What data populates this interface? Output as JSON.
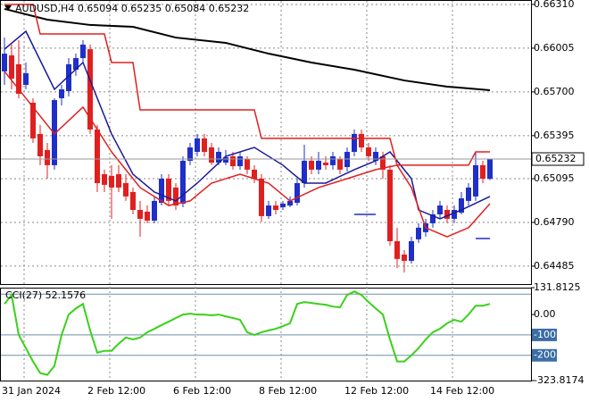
{
  "chart_data": [
    {
      "type": "candlestick",
      "title": "AUDUSD,H4  0.65094 0.65235 0.65084 0.65232",
      "categories": [
        "31 Jan 2024",
        null,
        null,
        null,
        null,
        null,
        null,
        null,
        null,
        null,
        null,
        null,
        "2 Feb 12:00",
        null,
        null,
        null,
        null,
        null,
        null,
        null,
        null,
        null,
        null,
        null,
        "6 Feb 12:00",
        null,
        null,
        null,
        null,
        null,
        null,
        null,
        null,
        null,
        null,
        null,
        "8 Feb 12:00",
        null,
        null,
        null,
        null,
        null,
        null,
        null,
        null,
        null,
        null,
        null,
        "12 Feb 12:00",
        null,
        null,
        null,
        null,
        null,
        null,
        null,
        null,
        null,
        null,
        null,
        "14 Feb 12:00",
        null,
        null,
        null,
        null,
        null,
        null,
        null,
        null
      ],
      "open": [
        0.65843,
        0.65955,
        0.65893,
        0.65749,
        0.65625,
        0.65407,
        0.65295,
        0.65189,
        0.65656,
        0.65706,
        0.65855,
        0.65936,
        0.65998,
        0.65438,
        0.65126,
        0.65114,
        0.65126,
        0.65064,
        0.65002,
        0.64877,
        0.64865,
        0.64802,
        0.64927,
        0.65095,
        0.65033,
        0.64921,
        0.6522,
        0.65282,
        0.65376,
        0.65313,
        0.65207,
        0.65207,
        0.65251,
        0.65182,
        0.65232,
        0.65158,
        0.65095,
        0.64834,
        0.64908,
        0.64896,
        0.64908,
        0.64927,
        0.65064,
        0.6522,
        0.65158,
        0.65207,
        0.65189,
        0.65232,
        0.65176,
        0.65282,
        0.65407,
        0.65313,
        0.6522,
        0.65251,
        0.65158,
        0.64659,
        0.64566,
        0.64522,
        0.64672,
        0.64722,
        0.64784,
        0.64846,
        0.64877,
        0.64815,
        0.64858,
        0.6494,
        0.64971,
        0.65189,
        0.65094
      ],
      "high": [
        0.66079,
        0.6603,
        0.66061,
        0.65905,
        0.65656,
        0.6547,
        0.65344,
        0.65656,
        0.65749,
        0.65936,
        0.65967,
        0.66061,
        0.6603,
        0.6547,
        0.65158,
        0.65189,
        0.65189,
        0.65126,
        0.65033,
        0.6494,
        0.64908,
        0.64971,
        0.65126,
        0.65126,
        0.65064,
        0.65251,
        0.65344,
        0.65407,
        0.65407,
        0.65344,
        0.65313,
        0.65295,
        0.65282,
        0.65282,
        0.65251,
        0.65189,
        0.65126,
        0.6494,
        0.6494,
        0.6494,
        0.64971,
        0.65095,
        0.65332,
        0.65251,
        0.65282,
        0.65251,
        0.65282,
        0.65251,
        0.65313,
        0.65438,
        0.65438,
        0.65344,
        0.65313,
        0.65282,
        0.65189,
        0.64753,
        0.64597,
        0.6469,
        0.64784,
        0.64815,
        0.64877,
        0.6494,
        0.64908,
        0.64908,
        0.65002,
        0.65064,
        0.65282,
        0.6522,
        0.65235
      ],
      "low": [
        0.65749,
        0.65718,
        0.65656,
        0.65718,
        0.65344,
        0.65189,
        0.65095,
        0.65158,
        0.65606,
        0.65668,
        0.65812,
        0.65905,
        0.65407,
        0.65002,
        0.65002,
        0.64815,
        0.65002,
        0.6494,
        0.64846,
        0.6469,
        0.64784,
        0.64784,
        0.64908,
        0.64908,
        0.64877,
        0.64896,
        0.65189,
        0.65251,
        0.65251,
        0.65189,
        0.65189,
        0.65189,
        0.65158,
        0.65158,
        0.65126,
        0.65064,
        0.64796,
        0.64815,
        0.64846,
        0.64877,
        0.64896,
        0.64908,
        0.65033,
        0.65126,
        0.65126,
        0.65158,
        0.65158,
        0.65126,
        0.65145,
        0.65251,
        0.65282,
        0.6522,
        0.65189,
        0.65095,
        0.64628,
        0.64472,
        0.64441,
        0.64503,
        0.64647,
        0.6469,
        0.64753,
        0.64815,
        0.64784,
        0.64784,
        0.64846,
        0.64908,
        0.6494,
        0.65064,
        0.65084
      ],
      "close": [
        0.65967,
        0.65793,
        0.65687,
        0.6583,
        0.65376,
        0.65251,
        0.65189,
        0.65643,
        0.65718,
        0.65893,
        0.65936,
        0.6603,
        0.65438,
        0.65064,
        0.65052,
        0.65033,
        0.65033,
        0.64971,
        0.64877,
        0.64815,
        0.64802,
        0.6494,
        0.65095,
        0.6494,
        0.64908,
        0.6522,
        0.65313,
        0.65376,
        0.65282,
        0.65207,
        0.65282,
        0.65245,
        0.65182,
        0.65251,
        0.65158,
        0.65095,
        0.64834,
        0.64908,
        0.64877,
        0.64921,
        0.6494,
        0.65064,
        0.6522,
        0.65158,
        0.6522,
        0.65189,
        0.65251,
        0.65158,
        0.65282,
        0.65407,
        0.65313,
        0.65251,
        0.65282,
        0.65158,
        0.64659,
        0.64535,
        0.64522,
        0.64659,
        0.64753,
        0.64784,
        0.64846,
        0.64908,
        0.64815,
        0.64877,
        0.64958,
        0.65033,
        0.65189,
        0.65095,
        0.65232
      ],
      "up_color": "#1f2fc8",
      "down_color": "#e0201f",
      "series": [
        {
          "color": "#000000",
          "x": [
            0,
            6,
            12,
            18,
            24,
            31,
            37,
            43,
            49,
            56,
            62,
            68
          ],
          "values": [
            0.66279,
            0.66204,
            0.66167,
            0.66154,
            0.66079,
            0.66042,
            0.65967,
            0.65905,
            0.65855,
            0.6578,
            0.65737,
            0.65712
          ]
        },
        {
          "color": "#1a1a9a",
          "x": [
            0,
            3,
            7,
            11,
            15,
            18,
            21,
            24,
            27,
            31,
            35,
            39,
            42,
            45,
            49,
            52,
            54,
            57,
            58,
            61,
            64,
            68
          ],
          "values": [
            0.65998,
            0.66123,
            0.65718,
            0.65905,
            0.65407,
            0.65126,
            0.65002,
            0.6494,
            0.65064,
            0.65251,
            0.65313,
            0.65189,
            0.65064,
            0.65064,
            0.65158,
            0.6522,
            0.65282,
            0.65095,
            0.64877,
            0.64815,
            0.64877,
            0.64971
          ]
        },
        {
          "color": "#e0201f",
          "x": [
            0,
            4,
            7,
            11,
            15,
            19,
            23,
            26,
            29,
            33,
            37,
            40,
            44,
            48,
            52,
            55,
            57,
            59,
            62,
            65,
            68
          ],
          "values": [
            0.65843,
            0.65594,
            0.65407,
            0.65594,
            0.65282,
            0.65033,
            0.64908,
            0.6494,
            0.65064,
            0.65126,
            0.65064,
            0.6494,
            0.65033,
            0.65095,
            0.65158,
            0.65189,
            0.65033,
            0.64753,
            0.6469,
            0.64753,
            0.64921
          ]
        },
        {
          "color": "#e0201f",
          "x": [
            0,
            4,
            5,
            14,
            15,
            18,
            19,
            35,
            36,
            54,
            55,
            65,
            66,
            68
          ],
          "values": [
            0.6631,
            0.6631,
            0.66104,
            0.66104,
            0.65905,
            0.65905,
            0.65575,
            0.65575,
            0.65376,
            0.65376,
            0.65189,
            0.65189,
            0.65282,
            0.65282
          ]
        },
        {
          "color": "#1f2fc8",
          "x": [
            49,
            52,
            53,
            66,
            68
          ],
          "values": [
            0.64846,
            0.64846,
            null,
            0.64678,
            0.64678
          ]
        }
      ],
      "current": 0.65232,
      "ylim": [
        0.6436,
        0.66341
      ],
      "yticks": [
        {
          "value": 0.6631,
          "label": "0.66310"
        },
        0.66005,
        {
          "value": 0.657,
          "label": "0.65700"
        },
        0.65395,
        0.65095,
        {
          "value": 0.6479,
          "label": "0.64790"
        },
        0.64485
      ],
      "grid": true
    },
    {
      "type": "line",
      "title": "CCI(27) 52.1576",
      "color": "#3ad11a",
      "values": [
        52,
        96,
        -100,
        -165,
        -230,
        -287,
        -296,
        -252,
        -100,
        0,
        30,
        52,
        -78,
        -187,
        -178,
        -178,
        -143,
        -113,
        -122,
        -113,
        -87,
        -70,
        -52,
        -35,
        -17,
        0,
        4,
        0,
        0,
        -4,
        0,
        -9,
        -17,
        -26,
        -87,
        -100,
        -87,
        -78,
        -70,
        -57,
        -43,
        52,
        61,
        57,
        52,
        48,
        39,
        35,
        96,
        113,
        96,
        61,
        30,
        0,
        -122,
        -230,
        -230,
        -200,
        -165,
        -122,
        -87,
        -70,
        -43,
        -26,
        -35,
        0,
        43,
        43,
        52.1576
      ],
      "levels": [
        100,
        -100,
        -200
      ],
      "ylim": [
        -323.8174,
        131.8125
      ],
      "yticks": [
        131.8125,
        {
          "value": 0,
          "label": "0.00"
        },
        -100,
        -200,
        -323.8174
      ]
    }
  ]
}
